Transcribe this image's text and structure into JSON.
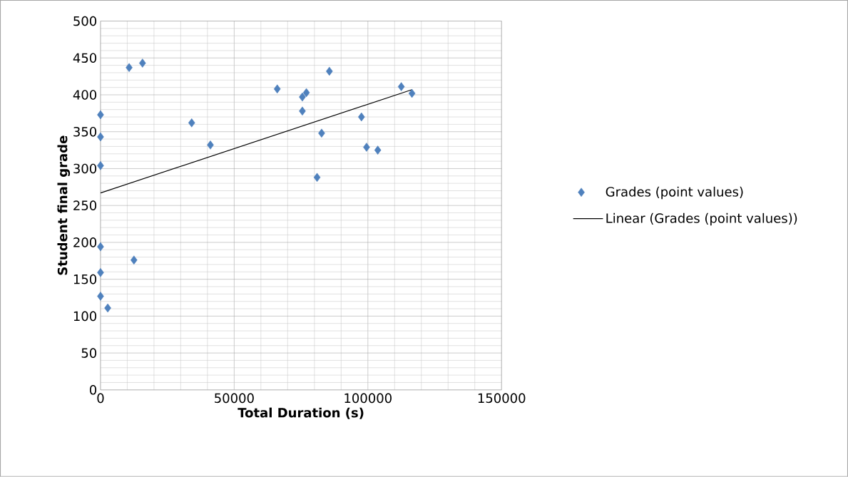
{
  "chart_data": {
    "type": "scatter",
    "xlabel": "Total Duration (s)",
    "ylabel": "Student final grade",
    "xlim": [
      0,
      150000
    ],
    "xticks": [
      0,
      50000,
      100000,
      150000
    ],
    "ylim": [
      0,
      500
    ],
    "yticks": [
      0,
      50,
      100,
      150,
      200,
      250,
      300,
      350,
      400,
      450,
      500
    ],
    "grid": true,
    "legend": "right",
    "marker": "diamond",
    "series": [
      {
        "name": "Grades (point values)",
        "color": "#4f81bd",
        "x": [
          0,
          0,
          0,
          0,
          0,
          0,
          2700,
          12500,
          10700,
          15700,
          34100,
          41100,
          66100,
          75500,
          75500,
          77000,
          82700,
          81000,
          85600,
          97600,
          99500,
          103700,
          112500,
          116500
        ],
        "values": [
          373,
          343,
          304,
          194,
          159,
          127,
          111,
          176,
          437,
          443,
          362,
          332,
          408,
          378,
          397,
          403,
          348,
          288,
          432,
          370,
          329,
          325,
          411,
          402
        ]
      },
      {
        "name": "Linear (Grades (point values))",
        "type": "line",
        "marker": "none",
        "color": "#000000",
        "x": [
          0,
          116500
        ],
        "values": [
          267,
          407
        ]
      }
    ]
  }
}
